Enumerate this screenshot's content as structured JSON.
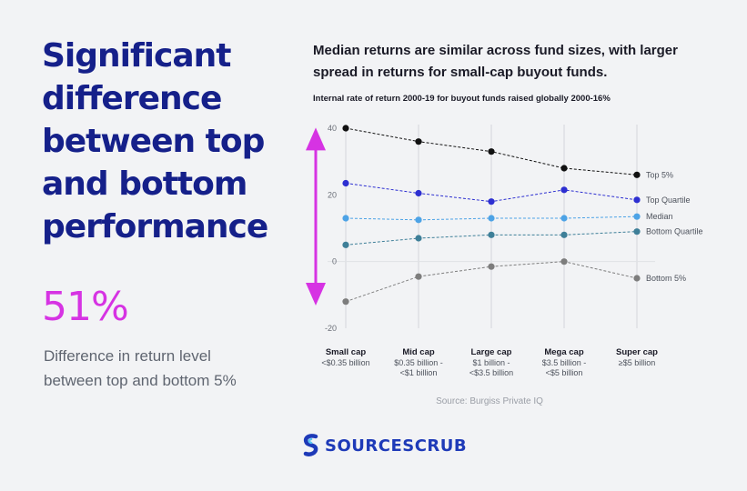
{
  "headline": {
    "lines": [
      "Significant",
      "difference",
      "between top",
      "and bottom",
      "performance"
    ]
  },
  "stat": {
    "value": "51%",
    "desc_lines": [
      "Difference in return level",
      "between top and bottom 5%"
    ]
  },
  "colors": {
    "headline": "#15208a",
    "accent": "#d633e3",
    "top5": "#111111",
    "top_quartile": "#2d2fd1",
    "median": "#4da3e6",
    "bottom_quartile": "#3e7f98",
    "bottom5": "#7d7d7d",
    "brand": "#1e3ab8"
  },
  "chart_data": {
    "type": "line",
    "title_lines": [
      "Median returns are similar across fund sizes, with larger",
      "spread in returns for small-cap buyout funds."
    ],
    "subtitle": "Internal rate of return 2000-19 for buyout funds raised globally 2000-16%",
    "categories": [
      {
        "name": "Small cap",
        "range": [
          "<$0.35 billion"
        ]
      },
      {
        "name": "Mid cap",
        "range": [
          "$0.35 billion -",
          "<$1 billion"
        ]
      },
      {
        "name": "Large cap",
        "range": [
          "$1 billion -",
          "<$3.5 billion"
        ]
      },
      {
        "name": "Mega cap",
        "range": [
          "$3.5 billion -",
          "<$5 billion"
        ]
      },
      {
        "name": "Super cap",
        "range": [
          "≥$5 billion"
        ]
      }
    ],
    "ylim": [
      -20,
      40
    ],
    "yticks": [
      "40",
      "20",
      "0",
      "-20"
    ],
    "ytick_values": [
      40,
      20,
      0,
      -20
    ],
    "grid": "vertical",
    "legend": "right end labels",
    "series": [
      {
        "name": "Top 5%",
        "color": "#111111",
        "values": [
          40,
          36,
          33,
          28,
          26
        ]
      },
      {
        "name": "Top Quartile",
        "color": "#2d2fd1",
        "values": [
          23.5,
          20.5,
          18,
          21.5,
          18.5
        ]
      },
      {
        "name": "Median",
        "color": "#4da3e6",
        "values": [
          13,
          12.5,
          13,
          13,
          13.5
        ]
      },
      {
        "name": "Bottom Quartile",
        "color": "#3e7f98",
        "values": [
          5,
          7,
          8,
          8,
          9
        ]
      },
      {
        "name": "Bottom 5%",
        "color": "#7d7d7d",
        "values": [
          -12,
          -4.5,
          -1.5,
          0,
          -5
        ]
      }
    ],
    "spread_arrow": {
      "from": 38,
      "to": -11
    }
  },
  "source": "Source: Burgiss Private IQ",
  "logo": {
    "text": "SOURCESCRUB"
  }
}
